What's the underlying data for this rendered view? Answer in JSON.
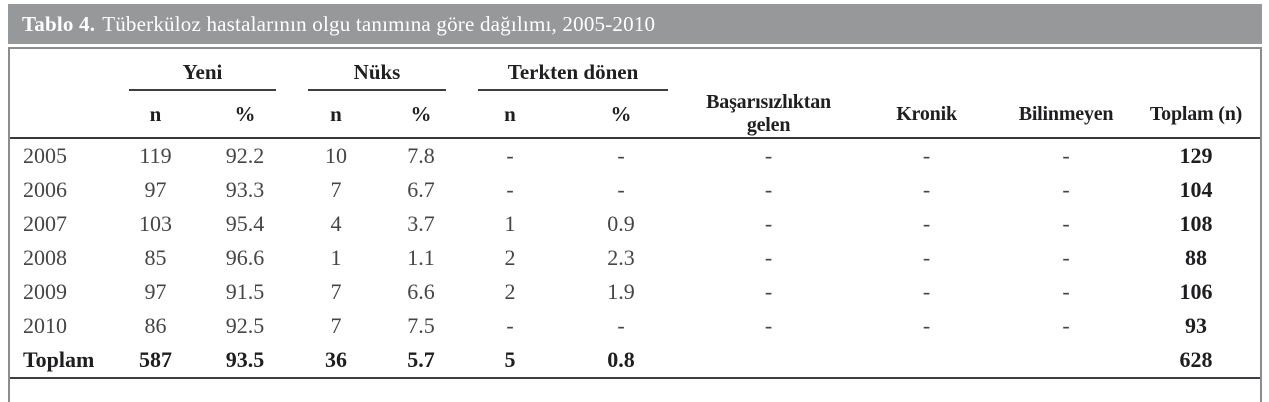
{
  "title": {
    "prefix": "Tablo 4.",
    "caption": "Tüberküloz hastalarının olgu tanımına göre dağılımı, 2005-2010"
  },
  "table": {
    "column_groups": [
      {
        "label": "Yeni",
        "subcolumns": [
          "n",
          "%"
        ]
      },
      {
        "label": "Nüks",
        "subcolumns": [
          "n",
          "%"
        ]
      },
      {
        "label": "Terkten dönen",
        "subcolumns": [
          "n",
          "%"
        ]
      }
    ],
    "columns": [
      "Başarısızlıktan gelen",
      "Kronik",
      "Bilinmeyen",
      "Toplam (n)"
    ],
    "rows": [
      {
        "total": false,
        "cells": [
          "2005",
          "119",
          "92.2",
          "10",
          "7.8",
          "-",
          "-",
          "-",
          "-",
          "-",
          "129"
        ]
      },
      {
        "total": false,
        "cells": [
          "2006",
          "97",
          "93.3",
          "7",
          "6.7",
          "-",
          "-",
          "-",
          "-",
          "-",
          "104"
        ]
      },
      {
        "total": false,
        "cells": [
          "2007",
          "103",
          "95.4",
          "4",
          "3.7",
          "1",
          "0.9",
          "-",
          "-",
          "-",
          "108"
        ]
      },
      {
        "total": false,
        "cells": [
          "2008",
          "85",
          "96.6",
          "1",
          "1.1",
          "2",
          "2.3",
          "-",
          "-",
          "-",
          "88"
        ]
      },
      {
        "total": false,
        "cells": [
          "2009",
          "97",
          "91.5",
          "7",
          "6.6",
          "2",
          "1.9",
          "-",
          "-",
          "-",
          "106"
        ]
      },
      {
        "total": false,
        "cells": [
          "2010",
          "86",
          "92.5",
          "7",
          "7.5",
          "-",
          "-",
          "-",
          "-",
          "-",
          "93"
        ]
      },
      {
        "total": true,
        "cells": [
          "Toplam",
          "587",
          "93.5",
          "36",
          "5.7",
          "5",
          "0.8",
          "",
          "",
          "",
          "628"
        ]
      }
    ]
  },
  "colors": {
    "title_bar_bg": "#97989a",
    "title_text": "#ffffff",
    "body_text": "#454547",
    "bold_text": "#1f1f21",
    "rule": "#3e3f41",
    "outer_border": "#8b8c8f"
  }
}
